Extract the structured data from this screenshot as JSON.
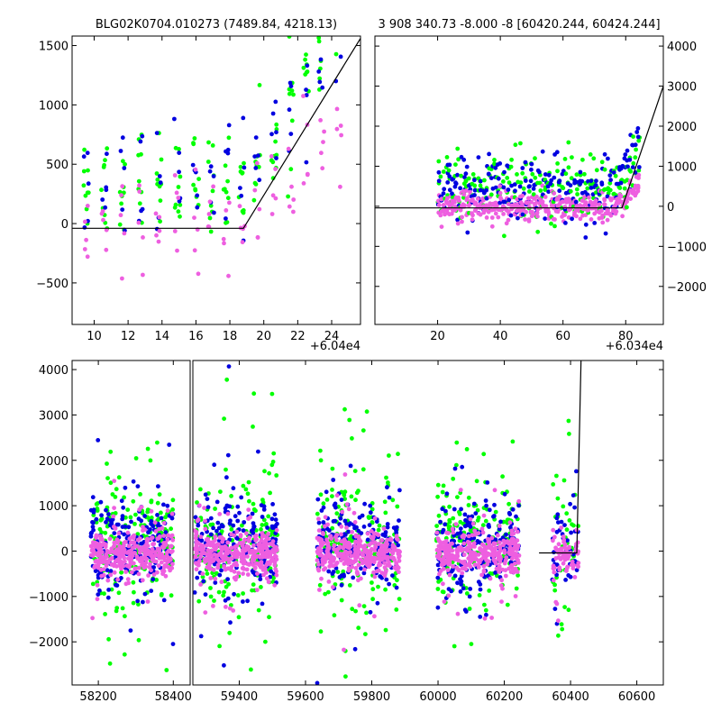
{
  "colors": {
    "green": "#00ff00",
    "blue": "#0000e0",
    "pink": "#ee5fe0",
    "line": "#000000",
    "frame": "#000000",
    "background": "#ffffff"
  },
  "chart_data": [
    {
      "type": "scatter",
      "panel": "zoom-left",
      "title": "BLG02K0704.010273 (7489.84, 4218.13)",
      "xlabel": "",
      "ylabel": "",
      "xlim": [
        60408.7,
        60425.7
      ],
      "ylim": [
        -850,
        1580
      ],
      "x_offset_label": "+6.04e4",
      "xticks": [
        60410,
        60412,
        60414,
        60416,
        60418,
        60420,
        60422,
        60424
      ],
      "xtick_labels": [
        "10",
        "12",
        "14",
        "16",
        "18",
        "20",
        "22",
        "24"
      ],
      "yticks": [
        -500,
        0,
        500,
        1000,
        1500
      ],
      "ytick_labels": [
        "−500",
        "0",
        "500",
        "1000",
        "1500"
      ],
      "grid": false,
      "model_line": {
        "x": [
          60408.7,
          60418.8,
          60425.7
        ],
        "y": [
          -40,
          -40,
          1560
        ]
      }
    },
    {
      "type": "scatter",
      "panel": "zoom-right",
      "title": "3 908 340.73 -8.000 -8 [60420.244, 60424.244]",
      "xlabel": "",
      "ylabel": "",
      "xlim": [
        60340,
        60432
      ],
      "ylim": [
        -2950,
        4250
      ],
      "x_offset_label": "+6.034e4",
      "xticks": [
        60360,
        60380,
        60400,
        60420
      ],
      "xtick_labels": [
        "20",
        "40",
        "60",
        "80"
      ],
      "yticks": [
        -2000,
        -1000,
        0,
        1000,
        2000,
        3000,
        4000
      ],
      "ytick_labels": [
        "−2000",
        "−1000",
        "0",
        "1000",
        "2000",
        "3000",
        "4000"
      ],
      "y_axis_side": "right",
      "grid": false,
      "model_line": {
        "x": [
          60340,
          60418.8,
          60432
        ],
        "y": [
          -40,
          -40,
          3000
        ]
      }
    },
    {
      "type": "scatter",
      "panel": "full-light-curve",
      "title": "",
      "xlabel": "",
      "ylabel": "",
      "x_axis_broken": true,
      "x_segments": [
        {
          "xlim": [
            58130,
            58445
          ],
          "xticks": [
            58200,
            58400
          ],
          "xtick_labels": [
            "58200",
            "58400"
          ]
        },
        {
          "xlim": [
            59260,
            60680
          ],
          "xticks": [
            59400,
            59600,
            59800,
            60000,
            60200,
            60400,
            60600
          ],
          "xtick_labels": [
            "59400",
            "59600",
            "59800",
            "60000",
            "60200",
            "60400",
            "60600"
          ]
        }
      ],
      "ylim": [
        -2950,
        4200
      ],
      "yticks": [
        -2000,
        -1000,
        0,
        1000,
        2000,
        3000,
        4000
      ],
      "ytick_labels": [
        "−2000",
        "−1000",
        "0",
        "1000",
        "2000",
        "3000",
        "4000"
      ],
      "grid": false,
      "seasons": [
        {
          "center": 58290,
          "half_width": 110
        },
        {
          "center": 59390,
          "half_width": 125
        },
        {
          "center": 59760,
          "half_width": 125
        },
        {
          "center": 60120,
          "half_width": 125
        },
        {
          "center": 60385,
          "half_width": 40
        }
      ],
      "model_line": {
        "x": [
          60305,
          60418.8,
          60432
        ],
        "y": [
          -40,
          -40,
          4300
        ]
      }
    }
  ]
}
